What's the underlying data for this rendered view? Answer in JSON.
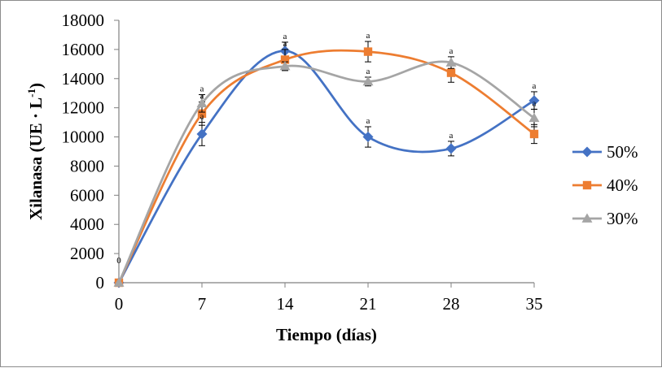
{
  "chart_data": {
    "type": "line",
    "smooth": true,
    "xlabel": "Tiempo (días)",
    "ylabel": "Xilanasa (UE · L",
    "ylabel_superscript": "-1",
    "ylabel_close": ")",
    "x": [
      0,
      7,
      14,
      21,
      28,
      35
    ],
    "x_tick_labels": [
      "0",
      "7",
      "14",
      "21",
      "28",
      "35"
    ],
    "ylim": [
      0,
      18000
    ],
    "y_tick_labels": [
      "0",
      "2000",
      "4000",
      "6000",
      "8000",
      "10000",
      "12000",
      "14000",
      "16000",
      "18000"
    ],
    "y_ticks": [
      0,
      2000,
      4000,
      6000,
      8000,
      10000,
      12000,
      14000,
      16000,
      18000
    ],
    "grid": false,
    "legend_position": "right",
    "series": [
      {
        "name": "50%",
        "color": "#4472C4",
        "marker": "diamond",
        "values": [
          0,
          10200,
          15900,
          10000,
          9200,
          12500
        ],
        "errors": [
          0,
          800,
          600,
          700,
          500,
          600
        ],
        "significance": [
          "0",
          "a",
          "a",
          "a",
          "a",
          "a"
        ]
      },
      {
        "name": "40%",
        "color": "#ED7D31",
        "marker": "square",
        "values": [
          0,
          11600,
          15300,
          15850,
          14400,
          10200
        ],
        "errors": [
          0,
          800,
          700,
          700,
          650,
          650
        ],
        "significance": [
          "",
          "a",
          "a",
          "a",
          "",
          ""
        ]
      },
      {
        "name": "30%",
        "color": "#A5A5A5",
        "marker": "triangle",
        "values": [
          0,
          12300,
          14850,
          13800,
          15100,
          11300
        ],
        "errors": [
          0,
          600,
          300,
          300,
          400,
          600
        ],
        "significance": [
          "",
          "a",
          "",
          "a",
          "a",
          "a"
        ]
      }
    ]
  }
}
